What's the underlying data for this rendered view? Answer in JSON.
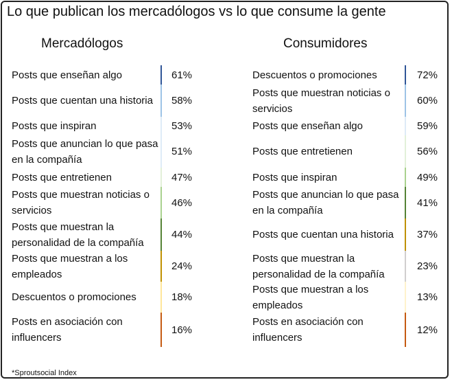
{
  "title": "Lo que publican los mercadólogos vs lo que consume la gente",
  "footnote": "*Sproutsocial Index",
  "left": {
    "heading": "Mercadólogos",
    "rows": [
      {
        "label": "Posts que enseñan algo",
        "value": "61%",
        "color": "#2f5597"
      },
      {
        "label": "Posts que cuentan una historia",
        "value": "58%",
        "color": "#9dc3e6"
      },
      {
        "label": "Posts que inspiran",
        "value": "53%",
        "color": "#deebf7"
      },
      {
        "label": "Posts que anuncian lo que pasa en la compañía",
        "value": "51%",
        "color": "#deebf7"
      },
      {
        "label": "Posts que entretienen",
        "value": "47%",
        "color": "#e2f0d9"
      },
      {
        "label": "Posts que muestran noticias o servicios",
        "value": "46%",
        "color": "#a9d18e"
      },
      {
        "label": "Posts que muestran la personalidad de la compañía",
        "value": "44%",
        "color": "#548235"
      },
      {
        "label": "Posts que muestran a los empleados",
        "value": "24%",
        "color": "#bf9000"
      },
      {
        "label": "Descuentos o promociones",
        "value": "18%",
        "color": "#ffe699"
      },
      {
        "label": "Posts en asociación con influencers",
        "value": "16%",
        "color": "#c55a11"
      }
    ]
  },
  "right": {
    "heading": "Consumidores",
    "rows": [
      {
        "label": "Descuentos o promociones",
        "value": "72%",
        "color": "#2f5597"
      },
      {
        "label": "Posts que muestran noticias o servicios",
        "value": "60%",
        "color": "#9dc3e6"
      },
      {
        "label": "Posts que enseñan algo",
        "value": "59%",
        "color": "#deebf7"
      },
      {
        "label": "Posts que entretienen",
        "value": "56%",
        "color": "#e2f0d9"
      },
      {
        "label": "Posts que inspiran",
        "value": "49%",
        "color": "#a9d18e"
      },
      {
        "label": "Posts que anuncian lo que pasa en la compañía",
        "value": "41%",
        "color": "#548235"
      },
      {
        "label": "Posts que cuentan una historia",
        "value": "37%",
        "color": "#bf9000"
      },
      {
        "label": "Posts que muestran la personalidad de la compañía",
        "value": "23%",
        "color": "#d0cece"
      },
      {
        "label": "Posts que muestran a los empleados",
        "value": "13%",
        "color": "#fff2cc"
      },
      {
        "label": "Posts en asociación con influencers",
        "value": "12%",
        "color": "#c55a11"
      }
    ]
  }
}
